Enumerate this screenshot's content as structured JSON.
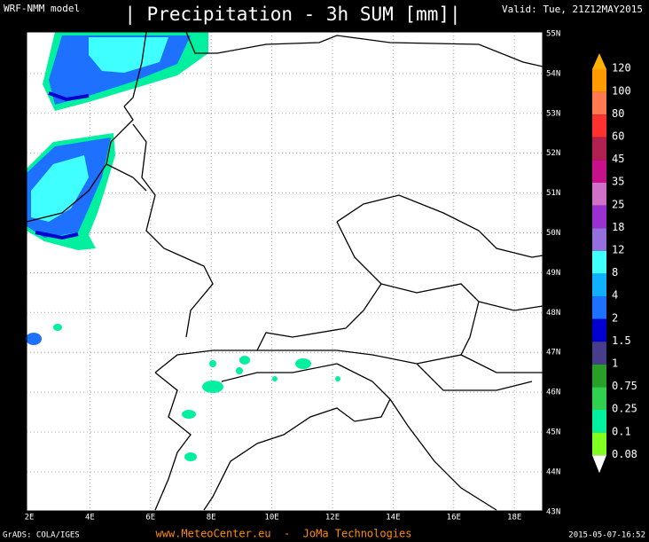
{
  "header": {
    "model": "WRF-NMM model",
    "title": "| Precipitation - 3h SUM [mm]|",
    "valid": "Valid: Tue, 21Z12MAY2015"
  },
  "map": {
    "lat_labels": [
      "55N",
      "54N",
      "53N",
      "52N",
      "51N",
      "50N",
      "49N",
      "48N",
      "47N",
      "46N",
      "45N",
      "44N",
      "43N"
    ],
    "lon_labels": [
      "2E",
      "4E",
      "6E",
      "8E",
      "10E",
      "12E",
      "14E",
      "16E",
      "18E"
    ]
  },
  "colorbar": {
    "levels": [
      "120",
      "100",
      "80",
      "60",
      "45",
      "35",
      "25",
      "18",
      "12",
      "8",
      "4",
      "2",
      "1.5",
      "1",
      "0.75",
      "0.25",
      "0.1",
      "0.08"
    ],
    "colors": [
      "#ffb000",
      "#ff9a00",
      "#ff7a50",
      "#ff3030",
      "#b02050",
      "#c8108a",
      "#d070c8",
      "#9a30d0",
      "#9370db",
      "#40ffff",
      "#10b0ff",
      "#1e70ff",
      "#0000d0",
      "#483d8b",
      "#28a028",
      "#30d050",
      "#00f0a0",
      "#80ff20",
      "#ffffff"
    ]
  },
  "footer": {
    "left": "GrADS: COLA/IGES",
    "center": "www.MeteoCenter.eu  -  JoMa Technologies",
    "right": "2015-05-07-16:52"
  }
}
